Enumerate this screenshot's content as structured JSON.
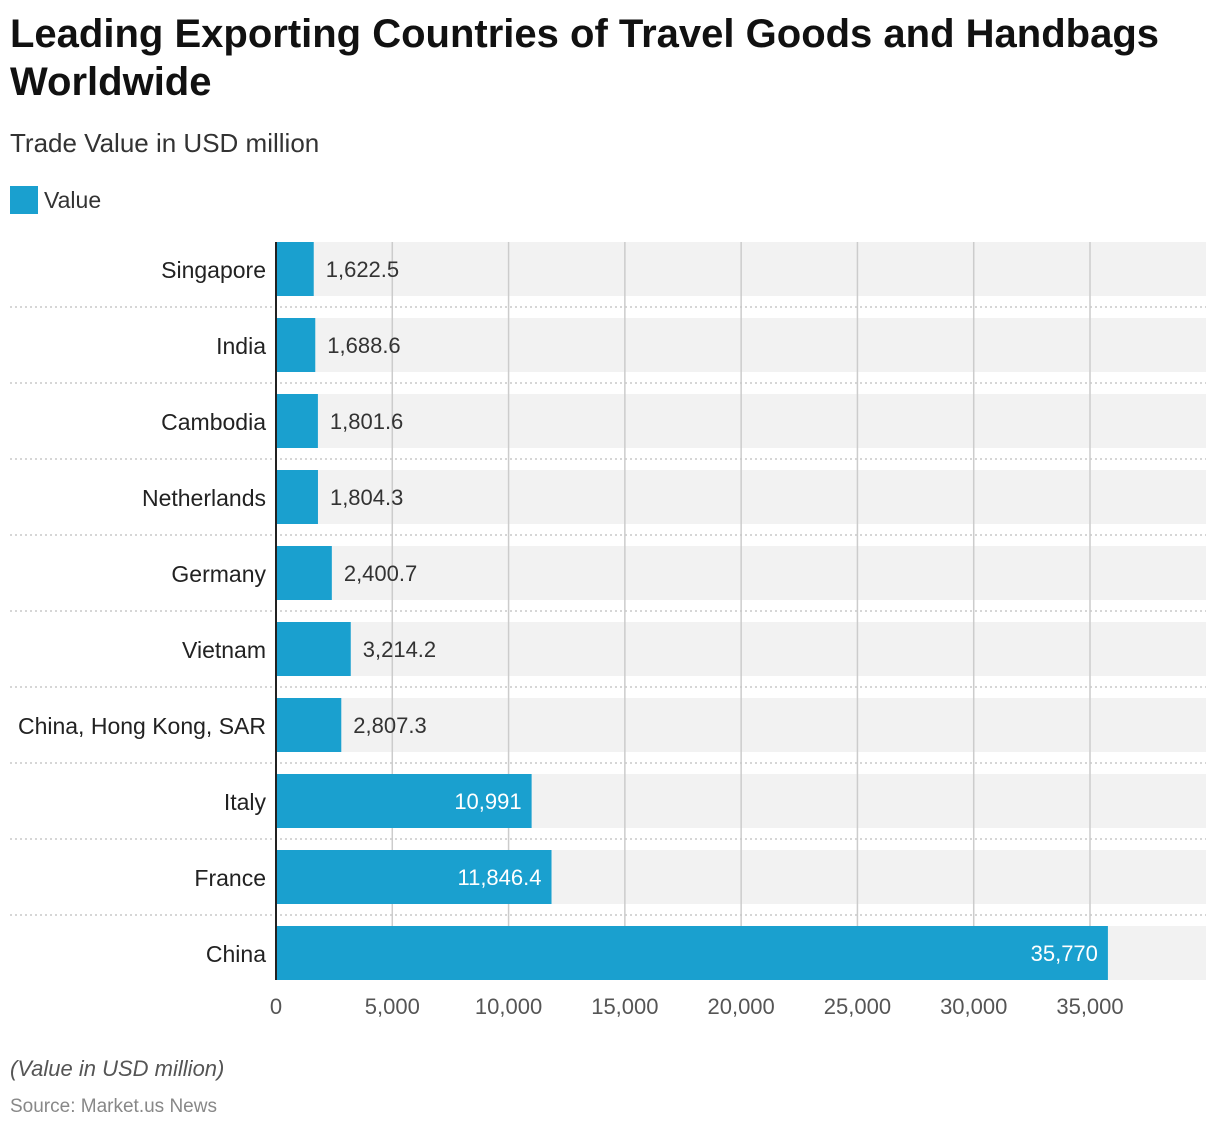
{
  "title": "Leading Exporting Countries of Travel Goods and Handbags Worldwide",
  "subtitle": "Trade Value in USD million",
  "legend": {
    "label": "Value"
  },
  "footnote": "(Value in USD million)",
  "source": "Source: Market.us News",
  "colors": {
    "bar": "#1aa0cf",
    "band": "#f2f2f2",
    "grid": "#cccccc"
  },
  "chart_data": {
    "type": "bar",
    "orientation": "horizontal",
    "title": "Leading Exporting Countries of Travel Goods and Handbags Worldwide",
    "subtitle": "Trade Value in USD million",
    "xlabel": "",
    "ylabel": "",
    "legend": "top-left",
    "xlim": [
      0,
      40000
    ],
    "xticks": [
      0,
      5000,
      10000,
      15000,
      20000,
      25000,
      30000,
      35000
    ],
    "xtick_labels": [
      "0",
      "5,000",
      "10,000",
      "15,000",
      "20,000",
      "25,000",
      "30,000",
      "35,000"
    ],
    "categories": [
      "Singapore",
      "India",
      "Cambodia",
      "Netherlands",
      "Germany",
      "Vietnam",
      "China, Hong Kong, SAR",
      "Italy",
      "France",
      "China"
    ],
    "values": [
      1622.5,
      1688.6,
      1801.6,
      1804.3,
      2400.7,
      3214.2,
      2807.3,
      10991,
      11846.4,
      35770
    ],
    "value_labels": [
      "1,622.5",
      "1,688.6",
      "1,801.6",
      "1,804.3",
      "2,400.7",
      "3,214.2",
      "2,807.3",
      "10,991",
      "11,846.4",
      "35,770"
    ],
    "series": [
      {
        "name": "Value"
      }
    ]
  }
}
